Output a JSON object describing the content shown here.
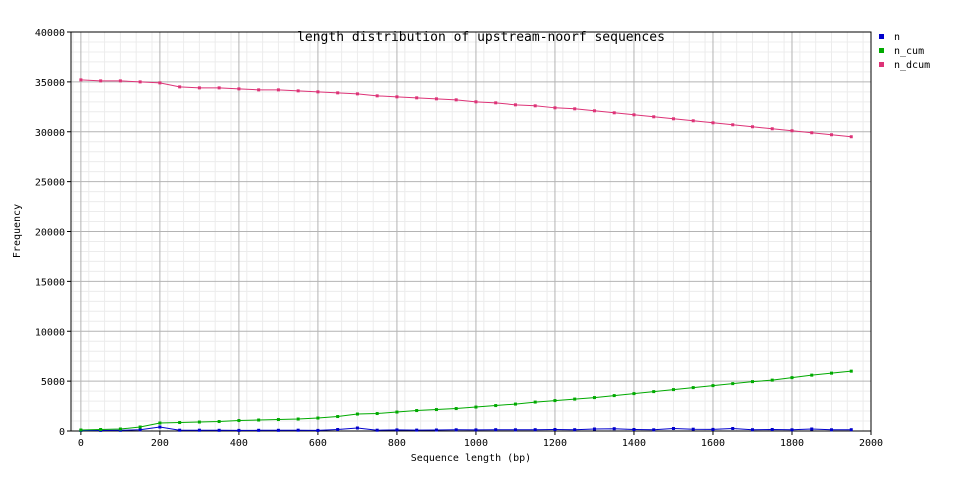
{
  "chart_data": {
    "type": "line",
    "title": "length distribution of upstream-noorf sequences",
    "xlabel": "Sequence length (bp)",
    "ylabel": "Frequency",
    "xlim": [
      -25,
      2000
    ],
    "ylim": [
      0,
      40000
    ],
    "x_ticks": [
      0,
      200,
      400,
      600,
      800,
      1000,
      1200,
      1400,
      1600,
      1800,
      2000
    ],
    "x_tick_labels": [
      "0",
      "200",
      "400",
      "600",
      "800",
      "1000",
      "1200",
      "1400",
      "1600",
      "1800",
      "2000"
    ],
    "y_ticks": [
      0,
      5000,
      10000,
      15000,
      20000,
      25000,
      30000,
      35000,
      40000
    ],
    "y_tick_labels": [
      "0",
      "5000",
      "10000",
      "15000",
      "20000",
      "25000",
      "30000",
      "35000",
      "40000"
    ],
    "grid": true,
    "legend_position": "top-right",
    "x": [
      0,
      50,
      100,
      150,
      200,
      250,
      300,
      350,
      400,
      450,
      500,
      550,
      600,
      650,
      700,
      750,
      800,
      850,
      900,
      950,
      1000,
      1050,
      1100,
      1150,
      1200,
      1250,
      1300,
      1350,
      1400,
      1450,
      1500,
      1550,
      1600,
      1650,
      1700,
      1750,
      1800,
      1850,
      1900,
      1950
    ],
    "series": [
      {
        "name": "n",
        "color": "#0000cc",
        "values": [
          50,
          60,
          70,
          120,
          400,
          80,
          80,
          70,
          60,
          70,
          70,
          80,
          60,
          150,
          300,
          80,
          110,
          90,
          100,
          120,
          110,
          130,
          120,
          130,
          150,
          130,
          200,
          230,
          150,
          120,
          250,
          180,
          160,
          250,
          130,
          150,
          120,
          200,
          120,
          130
        ]
      },
      {
        "name": "n_cum",
        "color": "#00aa00",
        "values": [
          100,
          150,
          200,
          400,
          800,
          850,
          900,
          950,
          1050,
          1100,
          1150,
          1200,
          1300,
          1450,
          1700,
          1750,
          1900,
          2050,
          2150,
          2250,
          2400,
          2550,
          2700,
          2900,
          3050,
          3200,
          3350,
          3550,
          3750,
          3950,
          4150,
          4350,
          4550,
          4750,
          4950,
          5100,
          5350,
          5600,
          5800,
          6000
        ]
      },
      {
        "name": "n_dcum",
        "color": "#dd3377",
        "values": [
          35200,
          35100,
          35100,
          35000,
          34900,
          34500,
          34400,
          34400,
          34300,
          34200,
          34200,
          34100,
          34000,
          33900,
          33800,
          33600,
          33500,
          33400,
          33300,
          33200,
          33000,
          32900,
          32700,
          32600,
          32400,
          32300,
          32100,
          31900,
          31700,
          31500,
          31300,
          31100,
          30900,
          30700,
          30500,
          30300,
          30100,
          29900,
          29700,
          29500
        ]
      }
    ]
  }
}
